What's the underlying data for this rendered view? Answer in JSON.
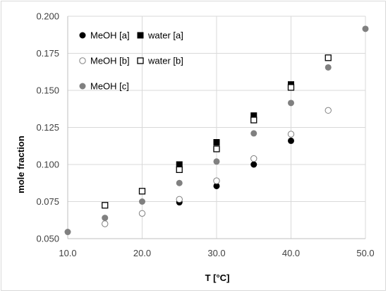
{
  "chart_data": {
    "type": "scatter",
    "title": "",
    "xlabel": "T [°C]",
    "ylabel": "mole fraction",
    "xlim": [
      10,
      50
    ],
    "ylim": [
      0.05,
      0.2
    ],
    "x_ticks": [
      "10.0",
      "20.0",
      "30.0",
      "40.0",
      "50.0"
    ],
    "y_ticks": [
      "0.050",
      "0.075",
      "0.100",
      "0.125",
      "0.150",
      "0.175",
      "0.200"
    ],
    "grid": true,
    "legend_position": "top-left",
    "series": [
      {
        "name": "MeOH [a]",
        "marker": "circle-filled",
        "color": "#000000",
        "points": [
          {
            "x": 25,
            "y": 0.0745
          },
          {
            "x": 30,
            "y": 0.0855
          },
          {
            "x": 35,
            "y": 0.1
          },
          {
            "x": 40,
            "y": 0.116
          }
        ]
      },
      {
        "name": "water [a]",
        "marker": "square-filled",
        "color": "#000000",
        "points": [
          {
            "x": 25,
            "y": 0.1
          },
          {
            "x": 30,
            "y": 0.115
          },
          {
            "x": 35,
            "y": 0.133
          },
          {
            "x": 40,
            "y": 0.154
          }
        ]
      },
      {
        "name": "MeOH [b]",
        "marker": "circle-open",
        "color": "#808080",
        "points": [
          {
            "x": 15,
            "y": 0.06
          },
          {
            "x": 20,
            "y": 0.067
          },
          {
            "x": 25,
            "y": 0.0765
          },
          {
            "x": 30,
            "y": 0.089
          },
          {
            "x": 35,
            "y": 0.104
          },
          {
            "x": 40,
            "y": 0.1205
          },
          {
            "x": 45,
            "y": 0.1365
          }
        ]
      },
      {
        "name": "water [b]",
        "marker": "square-open",
        "color": "#000000",
        "points": [
          {
            "x": 15,
            "y": 0.0725
          },
          {
            "x": 20,
            "y": 0.082
          },
          {
            "x": 25,
            "y": 0.0965
          },
          {
            "x": 30,
            "y": 0.1105
          },
          {
            "x": 35,
            "y": 0.13
          },
          {
            "x": 40,
            "y": 0.152
          },
          {
            "x": 45,
            "y": 0.172
          }
        ]
      },
      {
        "name": "MeOH [c]",
        "marker": "circle-filled",
        "color": "#808080",
        "points": [
          {
            "x": 10,
            "y": 0.0545
          },
          {
            "x": 15,
            "y": 0.064
          },
          {
            "x": 20,
            "y": 0.075
          },
          {
            "x": 25,
            "y": 0.0875
          },
          {
            "x": 30,
            "y": 0.102
          },
          {
            "x": 35,
            "y": 0.121
          },
          {
            "x": 40,
            "y": 0.1415
          },
          {
            "x": 45,
            "y": 0.1655
          },
          {
            "x": 50,
            "y": 0.1915
          }
        ]
      }
    ]
  }
}
